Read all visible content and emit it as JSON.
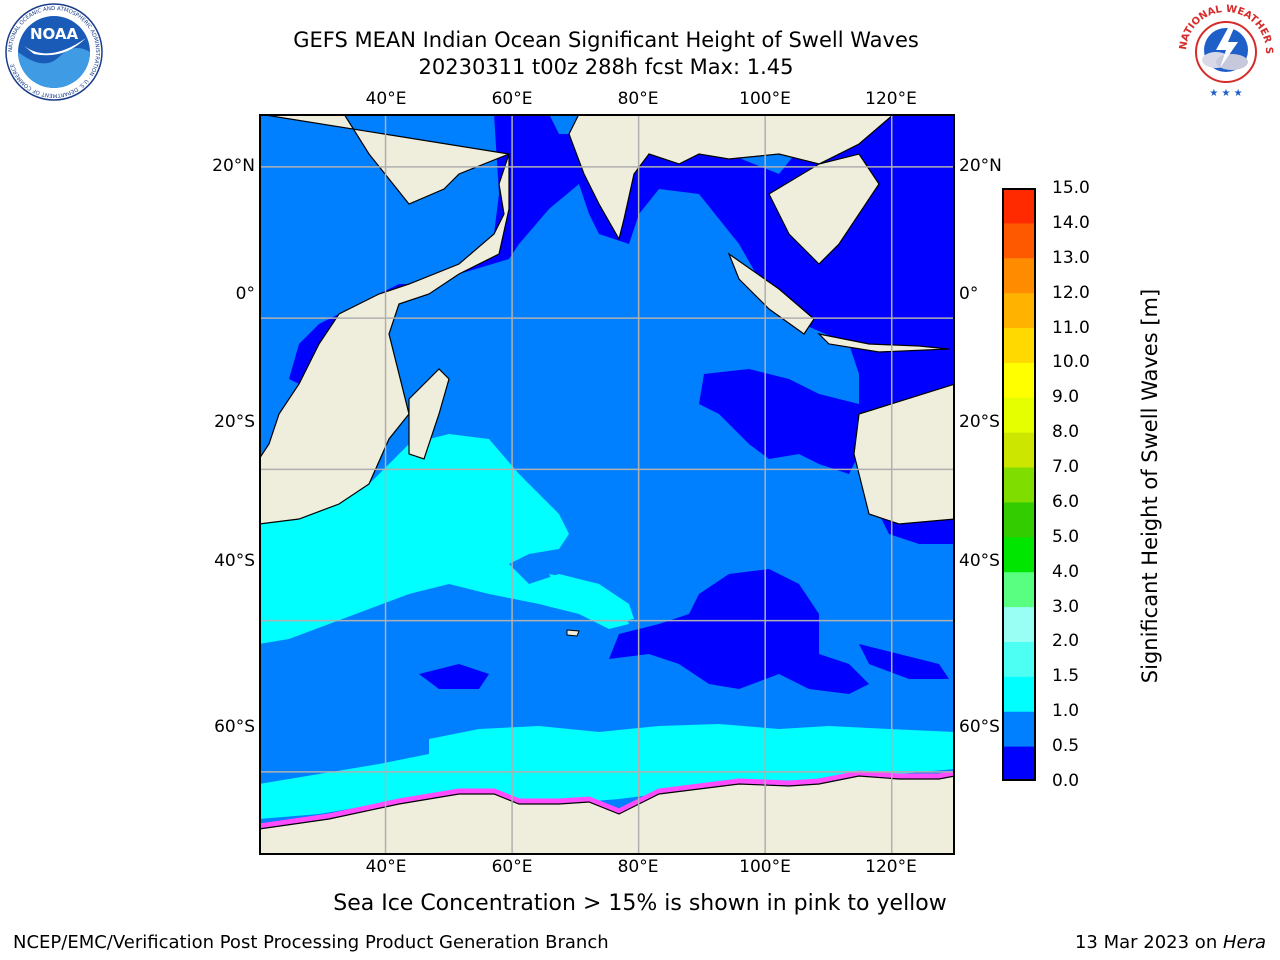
{
  "header": {
    "title_line1": "GEFS MEAN Indian Ocean Significant Height of Swell Waves",
    "title_line2": "20230311 t00z 288h fcst   Max: 1.45"
  },
  "logos": {
    "left": "NOAA",
    "left_ring_text": "NATIONAL OCEANIC AND ATMOSPHERIC ADMINISTRATION · U.S. DEPARTMENT OF COMMERCE",
    "right_ring_text": "NATIONAL WEATHER SERVICE"
  },
  "map": {
    "lon_labels": [
      "40°E",
      "60°E",
      "80°E",
      "100°E",
      "120°E"
    ],
    "lat_labels": [
      "20°N",
      "0°",
      "20°S",
      "40°S",
      "60°S"
    ],
    "lon_extent": [
      20,
      130
    ],
    "lat_extent": [
      -71,
      27
    ],
    "colors": {
      "land": "#efeddb",
      "swell_0_05": "#0000ff",
      "swell_05_10": "#007fff",
      "swell_10_15": "#00ffff",
      "sea_ice": "#ff4cff",
      "grid": "#b0b0b0"
    }
  },
  "colorbar": {
    "label": "Significant Height of Swell Waves [m]",
    "ticks": [
      "0.0",
      "0.5",
      "1.0",
      "1.5",
      "2.0",
      "3.0",
      "4.0",
      "5.0",
      "6.0",
      "7.0",
      "8.0",
      "9.0",
      "10.0",
      "11.0",
      "12.0",
      "13.0",
      "14.0",
      "15.0"
    ],
    "colors": [
      "#0000ff",
      "#007fff",
      "#00ffff",
      "#4cfff2",
      "#99fff5",
      "#59ff80",
      "#00e600",
      "#33cc00",
      "#7fdd00",
      "#cce600",
      "#e6ff00",
      "#ffff00",
      "#ffd900",
      "#ffb200",
      "#ff8c00",
      "#ff5900",
      "#ff2a00"
    ]
  },
  "annotation": "Sea Ice Concentration > 15% is shown in pink to yellow",
  "footer": {
    "left": "NCEP/EMC/Verification Post Processing Product Generation Branch",
    "right_date": "13 Mar 2023 on ",
    "right_machine": "Hera"
  }
}
